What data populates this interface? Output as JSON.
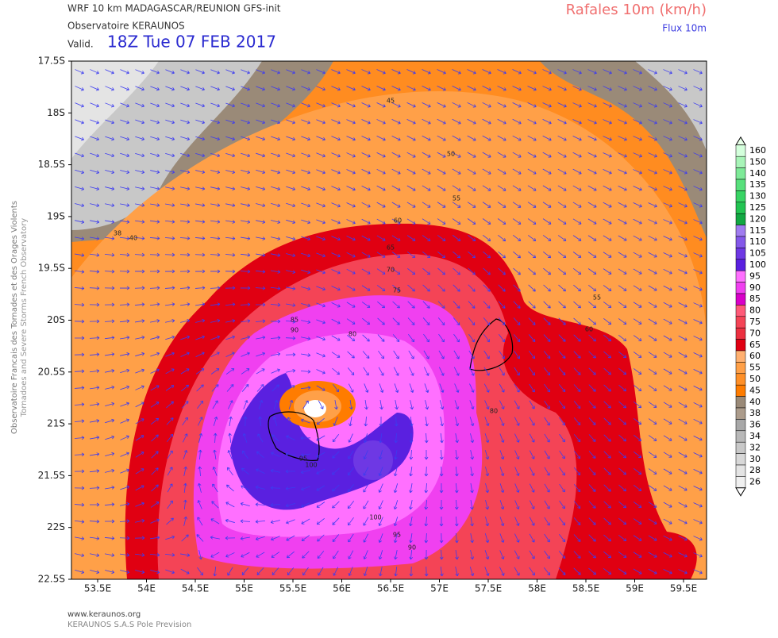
{
  "header": {
    "model": "WRF 10 km MADAGASCAR/REUNION   GFS-init",
    "source": "Observatoire KERAUNOS",
    "valid_prefix": "Valid.",
    "valid_time": "18Z Tue 07 FEB 2017",
    "field": "Rafales 10m (km/h)",
    "vectors": "Flux 10m"
  },
  "side_text": [
    "Observatoire Francais des Tornades et des Orages Violents",
    "Tornadoes and Severe Storms French Observatory"
  ],
  "footer": [
    "www.keraunos.org",
    "KERAUNOS S.A.S Pole Prevision"
  ],
  "lat_labels": [
    "17.5S",
    "18S",
    "18.5S",
    "19S",
    "19.5S",
    "20S",
    "20.5S",
    "21S",
    "21.5S",
    "22S",
    "22.5S"
  ],
  "lon_labels": [
    "53.5E",
    "54E",
    "54.5E",
    "55E",
    "55.5E",
    "56E",
    "56.5E",
    "57E",
    "57.5E",
    "58E",
    "58.5E",
    "59E",
    "59.5E"
  ],
  "colorbar": {
    "levels": [
      160,
      150,
      140,
      135,
      130,
      125,
      120,
      115,
      110,
      105,
      100,
      95,
      90,
      85,
      80,
      75,
      70,
      65,
      60,
      55,
      50,
      45,
      40,
      38,
      36,
      34,
      32,
      30,
      28,
      26
    ],
    "colors": [
      "#d4ffdc",
      "#a8f4b8",
      "#7eea98",
      "#58e07c",
      "#38d464",
      "#22c452",
      "#12a842",
      "#a07cf0",
      "#8458ea",
      "#6e38e4",
      "#5a20e0",
      "#ff70ff",
      "#f040f0",
      "#d800c8",
      "#ff5a78",
      "#f44456",
      "#ec3040",
      "#e00012",
      "#ffb070",
      "#ffa048",
      "#ff9028",
      "#ff7c00",
      "#9a8a78",
      "#ac9c8c",
      "#a8a8a8",
      "#b8b8b8",
      "#c8c8c8",
      "#d8d8d8",
      "#e4e4e4",
      "#f0f0f0"
    ]
  },
  "contour_labels": [
    45,
    50,
    55,
    60,
    65,
    70,
    75,
    85,
    90,
    80,
    38,
    40,
    55,
    60,
    80,
    95,
    100,
    100,
    95,
    90
  ]
}
